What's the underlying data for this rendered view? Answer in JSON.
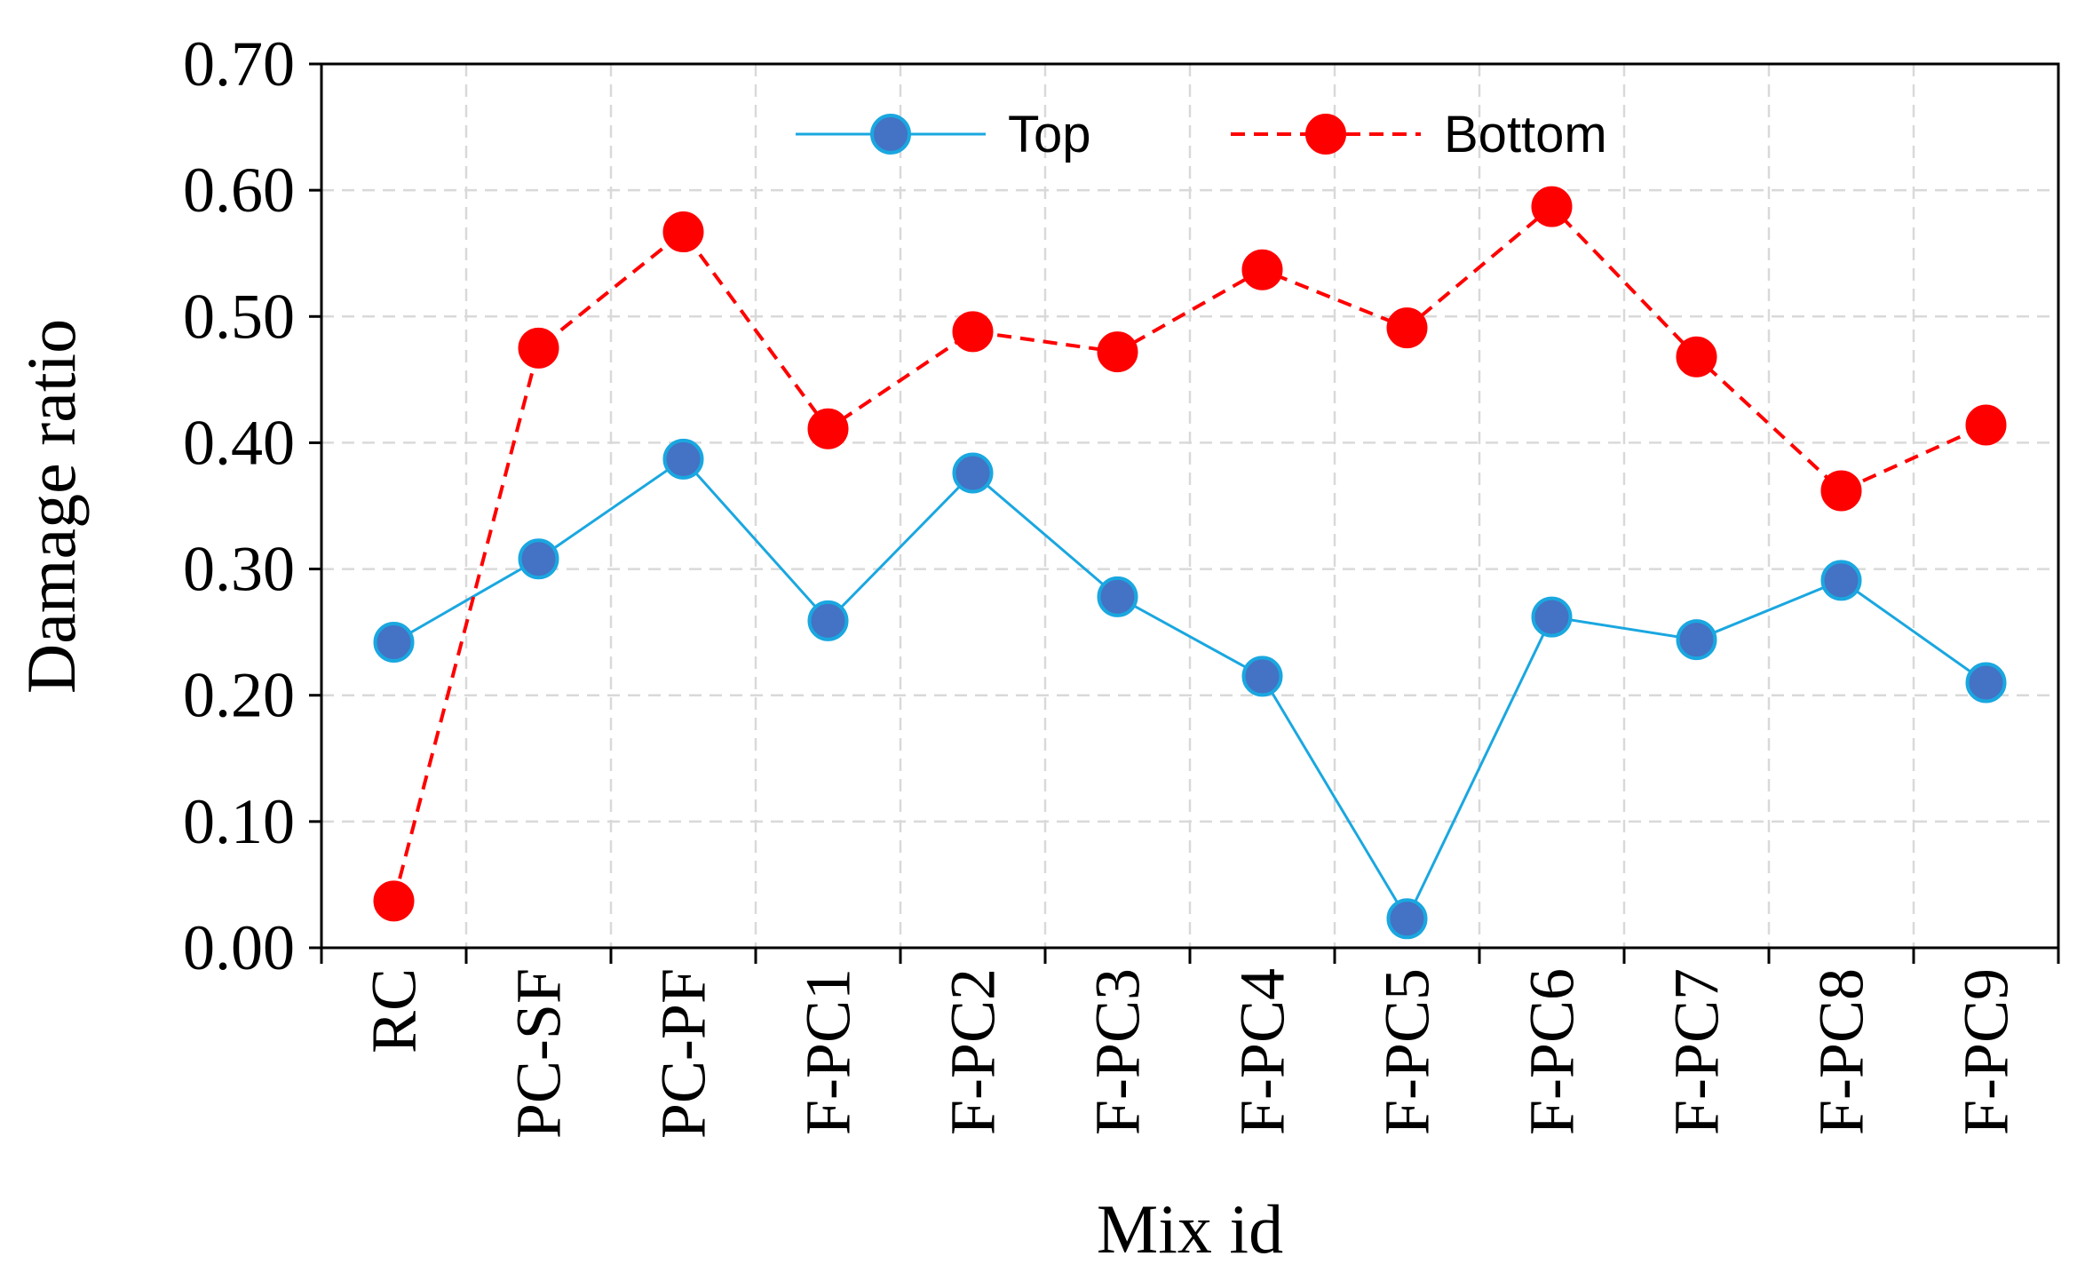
{
  "chart_data": {
    "type": "line",
    "categories": [
      "RC",
      "PC-SF",
      "PC-PF",
      "F-PC1",
      "F-PC2",
      "F-PC3",
      "F-PC4",
      "F-PC5",
      "F-PC6",
      "F-PC7",
      "F-PC8",
      "F-PC9"
    ],
    "series": [
      {
        "name": "Top",
        "values": [
          0.242,
          0.308,
          0.387,
          0.259,
          0.376,
          0.278,
          0.215,
          0.023,
          0.262,
          0.244,
          0.291,
          0.21
        ],
        "color": "#1aa7e0",
        "marker_color": "#4472c4",
        "line_style": "solid"
      },
      {
        "name": "Bottom",
        "values": [
          0.037,
          0.475,
          0.567,
          0.411,
          0.488,
          0.472,
          0.537,
          0.491,
          0.587,
          0.468,
          0.362,
          0.414
        ],
        "color": "#ff0000",
        "marker_color": "#ff0000",
        "line_style": "dashed"
      }
    ],
    "xlabel": "Mix id",
    "ylabel": "Damage ratio",
    "ylim": [
      0,
      0.7
    ],
    "yticks": [
      "0.00",
      "0.10",
      "0.20",
      "0.30",
      "0.40",
      "0.50",
      "0.60",
      "0.70"
    ],
    "grid": true,
    "legend_position": "top-center"
  }
}
